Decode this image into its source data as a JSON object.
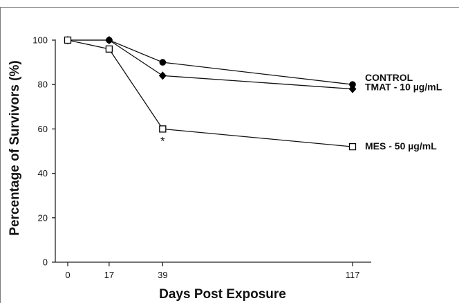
{
  "chart_data": {
    "type": "line",
    "title": "",
    "xlabel": "Days Post Exposure",
    "ylabel": "Percentage of Survivors (%)",
    "x": [
      0,
      17,
      39,
      117
    ],
    "x_tick_labels": [
      "0",
      "17",
      "39",
      "117"
    ],
    "y_ticks": [
      0,
      20,
      40,
      60,
      80,
      100
    ],
    "y_tick_labels": [
      "0",
      "20",
      "40",
      "60",
      "80",
      "100"
    ],
    "ylim": [
      0,
      100
    ],
    "grid": false,
    "legend": "direct labels at right end of lines",
    "series": [
      {
        "name": "CONTROL",
        "marker": "filled-circle",
        "values": [
          100,
          100,
          90,
          80
        ]
      },
      {
        "name": "TMAT - 10 µg/mL",
        "marker": "filled-diamond",
        "values": [
          100,
          100,
          84,
          78
        ]
      },
      {
        "name": "MES - 50 µg/mL",
        "marker": "open-square",
        "values": [
          100,
          96,
          60,
          52
        ]
      }
    ],
    "annotations": [
      {
        "text": "*",
        "x": 39,
        "series": "MES - 50 µg/mL"
      }
    ]
  }
}
